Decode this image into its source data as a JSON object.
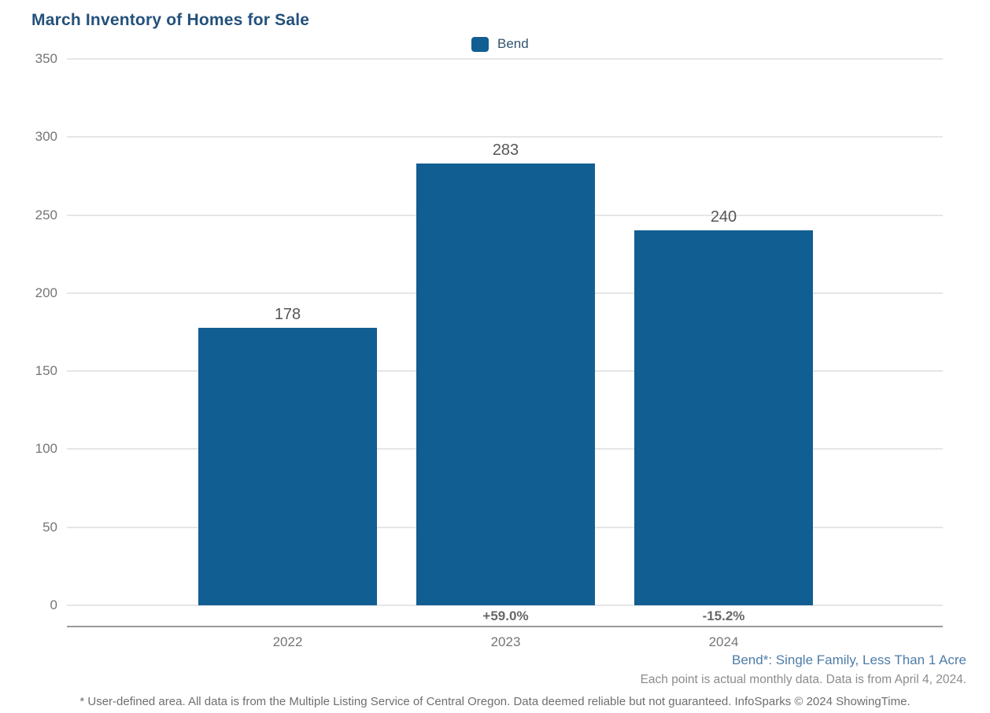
{
  "title": "March Inventory of Homes for Sale",
  "legend": {
    "label": "Bend"
  },
  "chart_data": {
    "type": "bar",
    "title": "March Inventory of Homes for Sale",
    "categories": [
      "2022",
      "2023",
      "2024"
    ],
    "series": [
      {
        "name": "Bend",
        "values": [
          178,
          283,
          240
        ]
      }
    ],
    "bar_labels": [
      "178",
      "283",
      "240"
    ],
    "pct_change_labels": [
      "",
      "+59.0%",
      "-15.2%"
    ],
    "xlabel": "",
    "ylabel": "",
    "ylim": [
      0,
      350
    ],
    "yticks": [
      0,
      50,
      100,
      150,
      200,
      250,
      300,
      350
    ],
    "grid": "horizontal",
    "legend_position": "top-center",
    "bar_color": "#115e92"
  },
  "footer": {
    "series_note": "Bend*: Single Family, Less Than 1 Acre",
    "data_note": "Each point is actual monthly data. Data is from April 4, 2024.",
    "disclaimer": "* User-defined area. All data is from the Multiple Listing Service of Central Oregon. Data deemed reliable but not guaranteed. InfoSparks © 2024 ShowingTime."
  },
  "colors": {
    "title": "#24517a",
    "bar": "#115e92",
    "legend_text": "#33536f",
    "axis_text": "#757575",
    "value_label": "#565656",
    "pct_label": "#686868",
    "gridline": "#e6e6e6",
    "axis_line": "#9a9a9a",
    "series_note": "#4d7ca8",
    "data_note": "#8c8c8c",
    "disclaimer": "#6f6f6f"
  }
}
